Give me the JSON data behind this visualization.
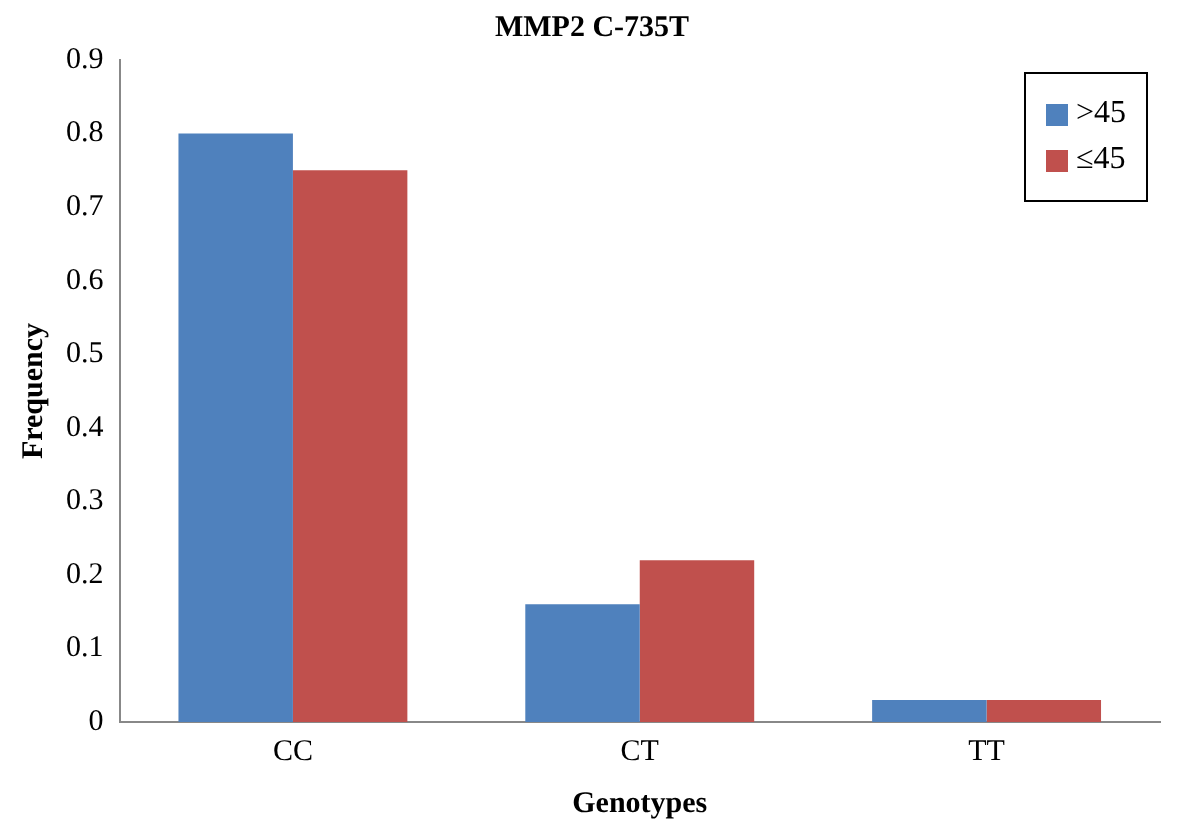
{
  "chart_data": {
    "type": "bar",
    "title": "MMP2 C-735T",
    "xlabel": "Genotypes",
    "ylabel": "Frequency",
    "categories": [
      "CC",
      "CT",
      "TT"
    ],
    "series": [
      {
        "name": ">45",
        "color": "#4f81bd",
        "values": [
          0.8,
          0.16,
          0.03
        ]
      },
      {
        "name": "≤45",
        "color": "#c0504d",
        "values": [
          0.75,
          0.22,
          0.03
        ]
      }
    ],
    "ylim": [
      0,
      0.9
    ],
    "yticks": [
      0,
      {
        "value": 0.1,
        "label": "0.1"
      },
      {
        "value": 0.2,
        "label": "0.2"
      },
      {
        "value": 0.3,
        "label": "0.3"
      },
      {
        "value": 0.4,
        "label": "0.4"
      },
      {
        "value": 0.5,
        "label": "0.5"
      },
      {
        "value": 0.6,
        "label": "0.6"
      },
      {
        "value": 0.7,
        "label": "0.7"
      },
      {
        "value": 0.8,
        "label": "0.8"
      },
      {
        "value": 0.9,
        "label": "0.9"
      }
    ],
    "grid": false,
    "legend": "top right"
  }
}
